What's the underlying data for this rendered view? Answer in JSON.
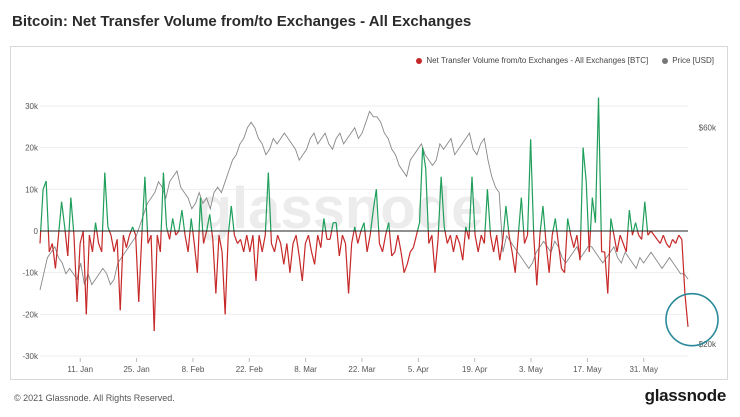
{
  "header": {
    "title": "Bitcoin: Net Transfer Volume from/to Exchanges - All Exchanges"
  },
  "footer": {
    "copyright": "© 2021 Glassnode. All Rights Reserved.",
    "brand": "glassnode"
  },
  "watermark": "glassnode",
  "colors": {
    "inflow": "#c62828",
    "outflow": "#1e9e5a",
    "price": "#888888",
    "highlight": "#2a8a99"
  },
  "chart_data": {
    "type": "line",
    "title": "Bitcoin: Net Transfer Volume from/to Exchanges - All Exchanges",
    "x_ticks": [
      "11. Jan",
      "25. Jan",
      "8. Feb",
      "22. Feb",
      "8. Mar",
      "22. Mar",
      "5. Apr",
      "19. Apr",
      "3. May",
      "17. May",
      "31. May"
    ],
    "y_left_ticks": [
      "30k",
      "20k",
      "10k",
      "0",
      "-10k",
      "-20k",
      "-30k"
    ],
    "y_left_range": [
      -30000,
      30000
    ],
    "y_right_ticks": [
      "$60k",
      "$20k"
    ],
    "y_right_range": [
      18000,
      64000
    ],
    "x_range": [
      "2021-01-01",
      "2021-06-11"
    ],
    "legend_position": "top-right",
    "series": [
      {
        "name": "Net Transfer Volume from/to Exchanges - All Exchanges [BTC]",
        "axis": "left",
        "values": [
          -3000,
          10000,
          12000,
          -5000,
          -3000,
          -9000,
          -1000,
          7000,
          1000,
          -6000,
          8000,
          -1000,
          -17000,
          -3000,
          0,
          -20000,
          -1000,
          -5000,
          2000,
          -3000,
          -5000,
          14000,
          1000,
          -1000,
          -5000,
          -2000,
          -19000,
          -1000,
          -4000,
          -1000,
          1000,
          -1000,
          -17000,
          -1000,
          13000,
          -3000,
          -1000,
          -24000,
          -1000,
          -5000,
          14000,
          1000,
          -2000,
          3000,
          -1000,
          0,
          5000,
          -1000,
          -5000,
          3000,
          -3000,
          -10000,
          8000,
          -3000,
          0,
          4000,
          -2000,
          -15000,
          -1000,
          -5000,
          -20000,
          -1000,
          6000,
          -1000,
          -3000,
          -2000,
          -5000,
          -1000,
          -5000,
          -1000,
          -12000,
          -1000,
          -5000,
          -1000,
          14000,
          -3000,
          -5000,
          -1000,
          -3000,
          -8000,
          -3000,
          -10000,
          -3000,
          -1000,
          -6000,
          -12000,
          -3000,
          -1000,
          -5000,
          -8000,
          -1000,
          -4000,
          3000,
          -2000,
          -2000,
          2000,
          2000,
          -6000,
          -1000,
          -3000,
          -15000,
          -3000,
          1000,
          -3000,
          0,
          2000,
          -5000,
          -1000,
          5000,
          10000,
          -3000,
          -5000,
          -1000,
          2000,
          -6000,
          -5000,
          -1000,
          -5000,
          -10000,
          -8000,
          -5000,
          -4000,
          -1000,
          2000,
          20000,
          15000,
          -3000,
          -1000,
          -10000,
          -2000,
          13000,
          1000,
          -3000,
          -1000,
          -5000,
          -1000,
          -3000,
          -7000,
          1000,
          -2000,
          13000,
          -1000,
          -5000,
          -1000,
          -3000,
          10000,
          -1000,
          -5000,
          -1000,
          -7000,
          -2000,
          6000,
          -1000,
          -5000,
          -10000,
          -1000,
          8000,
          -3000,
          -1000,
          22000,
          -1000,
          -13000,
          -1000,
          6000,
          -3000,
          -10000,
          -1000,
          3000,
          -3000,
          -9000,
          -10000,
          3000,
          -1000,
          -4000,
          -1000,
          -7000,
          20000,
          12000,
          -5000,
          8000,
          2000,
          32000,
          -5000,
          -5000,
          -15000,
          3000,
          -1000,
          -5000,
          -1000,
          -3000,
          -5000,
          5000,
          -1000,
          2000,
          -1000,
          -2000,
          7000,
          -1000,
          0,
          -1000,
          -2000,
          -3000,
          -1000,
          -3000,
          -4000,
          -2000,
          -3000,
          -1000,
          -2000,
          -15000,
          -23000
        ]
      },
      {
        "name": "Price [USD]",
        "axis": "right",
        "values": [
          30000,
          33000,
          36000,
          37000,
          38000,
          36000,
          35000,
          33000,
          34000,
          33000,
          32000,
          35000,
          31000,
          33000,
          31000,
          32000,
          33000,
          34000,
          33000,
          31000,
          32000,
          35000,
          36000,
          37000,
          38000,
          39000,
          40000,
          42000,
          44000,
          46000,
          47000,
          48000,
          50000,
          49000,
          47000,
          50000,
          51000,
          52000,
          49000,
          48000,
          47000,
          45000,
          46000,
          48000,
          46000,
          47000,
          45000,
          48000,
          49000,
          48000,
          50000,
          52000,
          54000,
          55000,
          57000,
          58000,
          60000,
          61000,
          60000,
          58000,
          57000,
          55000,
          56000,
          58000,
          57000,
          58000,
          59000,
          58000,
          57000,
          56000,
          54000,
          55000,
          56000,
          58000,
          59000,
          57000,
          58000,
          59000,
          57000,
          56000,
          58000,
          59000,
          57000,
          58000,
          59000,
          60000,
          58000,
          59000,
          61000,
          63000,
          62000,
          62000,
          61000,
          59000,
          58000,
          56000,
          55000,
          53000,
          52000,
          51000,
          54000,
          55000,
          56000,
          57000,
          55000,
          54000,
          53000,
          54000,
          57000,
          56000,
          57000,
          58000,
          55000,
          56000,
          57000,
          58000,
          59000,
          56000,
          55000,
          57000,
          58000,
          54000,
          51000,
          49000,
          48000,
          37000,
          40000,
          39000,
          38000,
          37000,
          36000,
          35000,
          34000,
          35000,
          37000,
          38000,
          39000,
          38000,
          37000,
          39000,
          38000,
          36000,
          35000,
          36000,
          37000,
          38000,
          36000,
          37000,
          38000,
          38000,
          37000,
          36000,
          35000,
          36000,
          37000,
          38000,
          36000,
          35000,
          37000,
          36000,
          35000,
          34000,
          36000,
          35000,
          36000,
          37000,
          36000,
          35000,
          34000,
          35000,
          36000,
          35000,
          34000,
          33000,
          33000,
          32000
        ]
      }
    ],
    "annotations": [
      {
        "type": "circle",
        "target": "final inflow spike",
        "color": "#2a8a99"
      }
    ]
  }
}
